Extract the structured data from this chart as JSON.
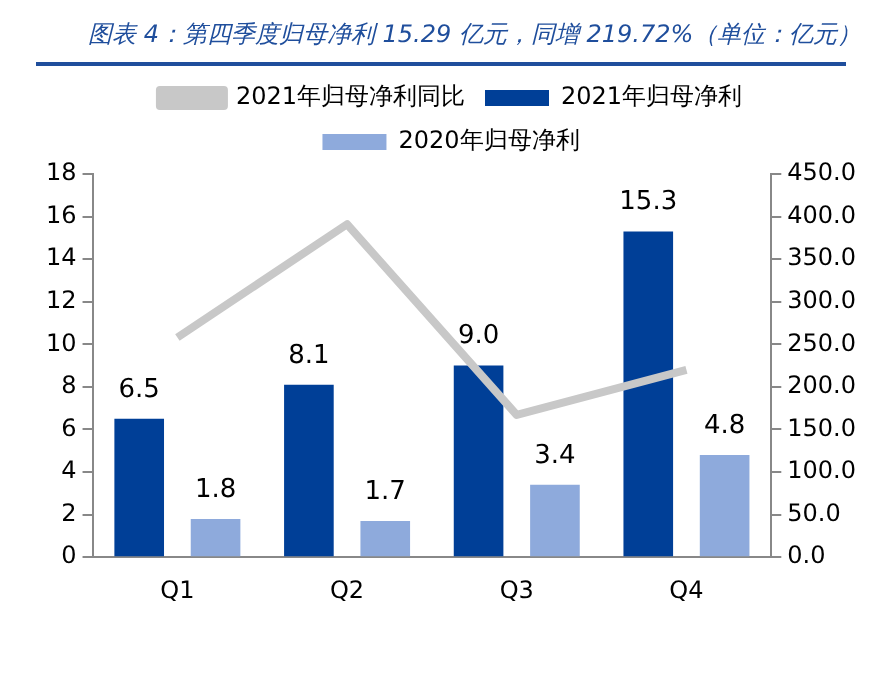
{
  "chart_data": {
    "type": "bar",
    "title": "图表 4：第四季度归母净利 15.29 亿元，同增 219.72%（单位：亿元）",
    "categories": [
      "Q1",
      "Q2",
      "Q3",
      "Q4"
    ],
    "series": [
      {
        "name": "2021年归母净利",
        "color": "#003f97",
        "values": [
          6.5,
          8.1,
          9.0,
          15.3
        ],
        "value_labels": [
          "6.5",
          "8.1",
          "9.0",
          "15.3"
        ]
      },
      {
        "name": "2020年归母净利",
        "color": "#8eaadc",
        "values": [
          1.8,
          1.7,
          3.4,
          4.8
        ],
        "value_labels": [
          "1.8",
          "1.7",
          "3.4",
          "4.8"
        ]
      },
      {
        "name": "2021年归母净利同比",
        "type": "line",
        "axis": "y2",
        "color": "#c8c8c8",
        "values": [
          258,
          391,
          167,
          220
        ],
        "marker": "none"
      }
    ],
    "ylim": [
      0,
      18
    ],
    "yticks": [
      0,
      2,
      4,
      6,
      8,
      10,
      12,
      14,
      16,
      18
    ],
    "y2lim": [
      0,
      450
    ],
    "y2ticks": [
      {
        "value": 0,
        "label": "0.0"
      },
      {
        "value": 50,
        "label": "50.0"
      },
      {
        "value": 100,
        "label": "100.0"
      },
      {
        "value": 150,
        "label": "150.0"
      },
      {
        "value": 200,
        "label": "200.0"
      },
      {
        "value": 250,
        "label": "250.0"
      },
      {
        "value": 300,
        "label": "300.0"
      },
      {
        "value": 350,
        "label": "350.0"
      },
      {
        "value": 400,
        "label": "400.0"
      },
      {
        "value": 450,
        "label": "450.0"
      }
    ],
    "grid": false,
    "legend": "top"
  }
}
